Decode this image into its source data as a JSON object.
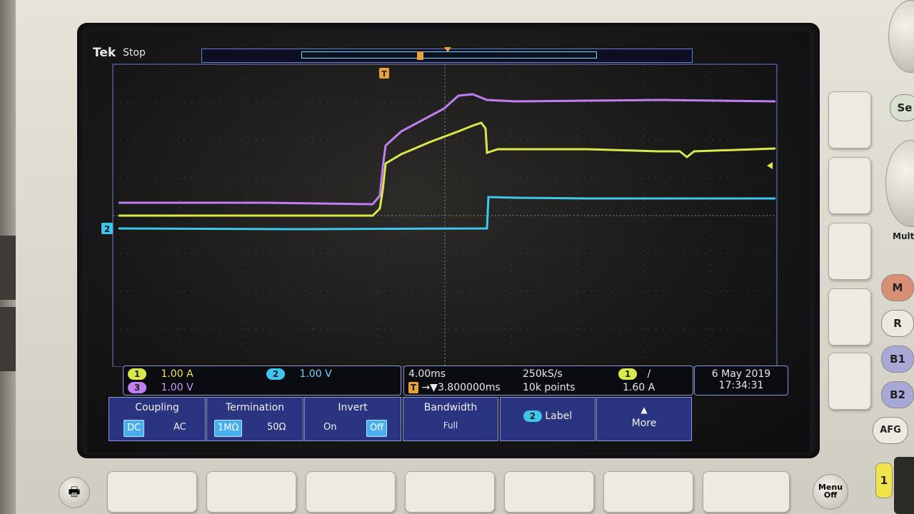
{
  "header": {
    "brand": "Tek",
    "run_state": "Stop",
    "trigger_marker": "T"
  },
  "channels": {
    "ch1": {
      "number": "1",
      "scale": "1.00 A",
      "color": "#d9e84a"
    },
    "ch2": {
      "number": "2",
      "scale": "1.00 V",
      "color": "#3fc6ef"
    },
    "ch3": {
      "number": "3",
      "scale": "1.00 V",
      "color": "#c07ef2"
    }
  },
  "timebase": {
    "scale": "4.00ms",
    "sample_rate": "250kS/s",
    "trigger_position": "3.800000ms",
    "record_length": "10k points"
  },
  "trigger": {
    "source": "1",
    "slope": "/",
    "level": "1.60 A"
  },
  "datetime": {
    "date": "6 May 2019",
    "time": "17:34:31"
  },
  "menu": {
    "coupling": {
      "label": "Coupling",
      "options": [
        "DC",
        "AC"
      ],
      "selected": "DC"
    },
    "termination": {
      "label": "Termination",
      "options": [
        "1MΩ",
        "50Ω"
      ],
      "selected": "1MΩ"
    },
    "invert": {
      "label": "Invert",
      "options": [
        "On",
        "Off"
      ],
      "selected": "Off"
    },
    "bandwidth": {
      "label": "Bandwidth",
      "value": "Full"
    },
    "label": {
      "channel": "2",
      "label": "Label"
    },
    "more": {
      "label": "More"
    }
  },
  "front_panel": {
    "buttons": [
      "M",
      "R",
      "B1",
      "B2",
      "AFG"
    ],
    "menu_off": "Menu Off",
    "select_partial": "Se",
    "multi_partial": "Mult",
    "one_button": "1"
  },
  "icons": {
    "printer": "printer-icon",
    "trigger_pos": "trigger-position-icon",
    "ground_marker": "channel-2-ground-marker",
    "trigger_level": "trigger-level-arrow"
  }
}
